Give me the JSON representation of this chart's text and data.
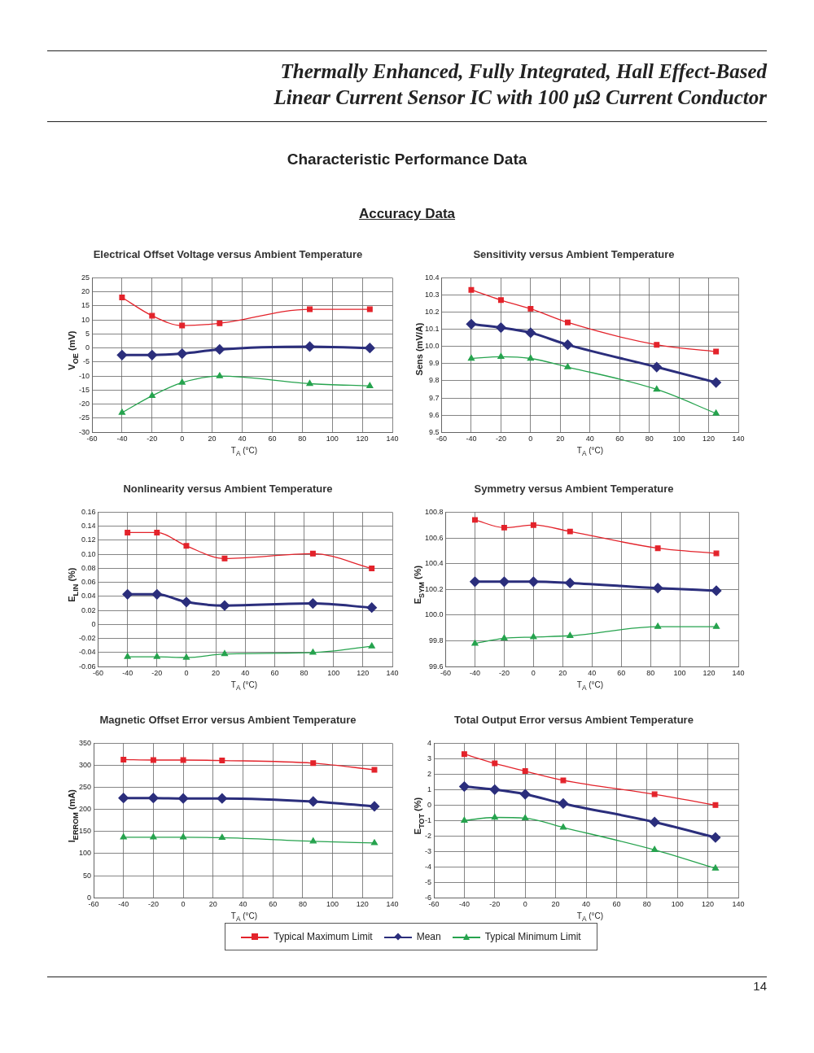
{
  "chart_data": [
    {
      "type": "line",
      "title": "Electrical Offset Voltage versus Ambient Temperature",
      "xlabel": "T$_{A}$ (°C)",
      "ylabel": "V$_{OE}$ (mV)",
      "x": [
        -40,
        -20,
        0,
        25,
        85,
        125
      ],
      "annotations": [
        "Thermally Enhanced, Fully Integrated, Hall Effect-Based Linear Current Sensor IC with 100 µΩ Current Conductor",
        "Characteristic Performance Data",
        "Accuracy Data",
        "14"
      ],
      "series": [
        {
          "color": "#e3232b",
          "marker": "square",
          "values": [
            18,
            11.5,
            8,
            8.8,
            13.8,
            13.8
          ]
        },
        {
          "color": "#2b2e7c",
          "marker": "diamond",
          "values": [
            -2.5,
            -2.5,
            -2,
            -0.5,
            0.5,
            0
          ]
        },
        {
          "color": "#26a34e",
          "marker": "triangle",
          "values": [
            -23,
            -17,
            -12.3,
            -10,
            -12.7,
            -13.5
          ]
        }
      ],
      "xlim": [
        -60,
        140
      ],
      "xticks": [
        -60,
        -40,
        -20,
        0,
        20,
        40,
        60,
        80,
        100,
        120,
        140
      ],
      "ylim": [
        -30,
        25
      ],
      "yticks": [
        -30,
        -25,
        -20,
        -15,
        -10,
        -5,
        0,
        5,
        10,
        15,
        20,
        25
      ],
      "grid": true
    },
    {
      "type": "line",
      "title": "Sensitivity versus Ambient Temperature",
      "xlabel": "T$_{A}$ (°C)",
      "ylabel": "Sens (mV/A)",
      "x": [
        -40,
        -20,
        0,
        25,
        85,
        125
      ],
      "series": [
        {
          "color": "#e3232b",
          "marker": "square",
          "values": [
            10.33,
            10.27,
            10.22,
            10.14,
            10.01,
            9.97
          ]
        },
        {
          "color": "#2b2e7c",
          "marker": "diamond",
          "values": [
            10.13,
            10.11,
            10.08,
            10.01,
            9.88,
            9.79
          ]
        },
        {
          "color": "#26a34e",
          "marker": "triangle",
          "values": [
            9.93,
            9.94,
            9.93,
            9.88,
            9.75,
            9.61
          ]
        }
      ],
      "xlim": [
        -60,
        140
      ],
      "xticks": [
        -60,
        -40,
        -20,
        0,
        20,
        40,
        60,
        80,
        100,
        120,
        140
      ],
      "ylim": [
        9.5,
        10.4
      ],
      "yticks": [
        9.5,
        9.6,
        9.7,
        9.8,
        9.9,
        {
          "value": 10,
          "label": "10.0"
        },
        10.1,
        10.2,
        10.3,
        10.4
      ],
      "grid": true
    },
    {
      "type": "line",
      "title": "Nonlinearity versus Ambient Temperature",
      "xlabel": "T$_{A}$ (°C)",
      "ylabel": "E$_{LIN}$ (%)",
      "x": [
        -40,
        -20,
        0,
        26,
        86,
        126
      ],
      "series": [
        {
          "color": "#e3232b",
          "marker": "square",
          "values": [
            0.131,
            0.131,
            0.112,
            0.094,
            0.101,
            0.08
          ]
        },
        {
          "color": "#2b2e7c",
          "marker": "diamond",
          "values": [
            0.043,
            0.043,
            0.032,
            0.027,
            0.03,
            0.024
          ]
        },
        {
          "color": "#26a34e",
          "marker": "triangle",
          "values": [
            -0.046,
            -0.046,
            -0.047,
            -0.042,
            -0.04,
            -0.031
          ]
        }
      ],
      "xlim": [
        -60,
        140
      ],
      "xticks": [
        -60,
        -40,
        -20,
        0,
        20,
        40,
        60,
        80,
        100,
        120,
        140
      ],
      "ylim": [
        -0.06,
        0.16
      ],
      "yticks": [
        -0.06,
        -0.04,
        -0.02,
        0,
        0.02,
        0.04,
        0.06,
        0.08,
        {
          "value": 0.1,
          "label": "0.10"
        },
        0.12,
        0.14,
        0.16
      ],
      "grid": true
    },
    {
      "type": "line",
      "title": "Symmetry versus Ambient Temperature",
      "xlabel": "T$_{A}$ (°C)",
      "ylabel": "E$_{SYM}$ (%)",
      "x": [
        -40,
        -20,
        0,
        25,
        85,
        125
      ],
      "series": [
        {
          "color": "#e3232b",
          "marker": "square",
          "values": [
            100.74,
            100.68,
            100.7,
            100.65,
            100.52,
            100.48
          ]
        },
        {
          "color": "#2b2e7c",
          "marker": "diamond",
          "values": [
            100.26,
            100.26,
            100.26,
            100.25,
            100.21,
            100.19
          ]
        },
        {
          "color": "#26a34e",
          "marker": "triangle",
          "values": [
            99.78,
            99.82,
            99.83,
            99.84,
            99.91,
            99.91
          ]
        }
      ],
      "xlim": [
        -60,
        140
      ],
      "xticks": [
        -60,
        -40,
        -20,
        0,
        20,
        40,
        60,
        80,
        100,
        120,
        140
      ],
      "ylim": [
        99.6,
        100.8
      ],
      "yticks": [
        99.6,
        99.8,
        {
          "value": 100,
          "label": "100.0"
        },
        100.2,
        100.4,
        100.6,
        100.8
      ],
      "grid": true
    },
    {
      "type": "line",
      "title": "Magnetic Offset Error versus Ambient Temperature",
      "xlabel": "T$_{A}$ (°C)",
      "ylabel": "I$_{ERROM}$ (mA)",
      "x": [
        -40,
        -20,
        0,
        26,
        87,
        128
      ],
      "series": [
        {
          "color": "#e3232b",
          "marker": "square",
          "values": [
            313,
            312,
            312,
            311,
            305,
            290
          ]
        },
        {
          "color": "#2b2e7c",
          "marker": "diamond",
          "values": [
            226,
            226,
            225,
            225,
            218,
            207
          ]
        },
        {
          "color": "#26a34e",
          "marker": "triangle",
          "values": [
            137,
            137,
            137,
            136,
            128,
            124
          ]
        }
      ],
      "xlim": [
        -60,
        140
      ],
      "xticks": [
        -60,
        -40,
        -20,
        0,
        20,
        40,
        60,
        80,
        100,
        120,
        140
      ],
      "ylim": [
        0,
        350
      ],
      "yticks": [
        0,
        50,
        100,
        150,
        200,
        250,
        300,
        350
      ],
      "grid": true
    },
    {
      "type": "line",
      "title": "Total Output Error versus Ambient Temperature",
      "xlabel": "T$_{A}$ (°C)",
      "ylabel": "E$_{TOT}$ (%)",
      "x": [
        -40,
        -20,
        0,
        25,
        85,
        125
      ],
      "series": [
        {
          "name": "Typical Maximum Limit",
          "color": "#e3232b",
          "marker": "square",
          "values": [
            3.3,
            2.7,
            2.2,
            1.6,
            0.7,
            0
          ]
        },
        {
          "name": "Mean",
          "color": "#2b2e7c",
          "marker": "diamond",
          "values": [
            1.2,
            1,
            0.7,
            0.1,
            -1.1,
            -2.1
          ]
        },
        {
          "name": "Typical Minimum Limit",
          "color": "#26a34e",
          "marker": "triangle",
          "values": [
            -1,
            -0.8,
            -0.85,
            -1.45,
            -2.9,
            -4.1
          ]
        }
      ],
      "xlim": [
        -60,
        140
      ],
      "xticks": [
        -60,
        -40,
        -20,
        0,
        20,
        40,
        60,
        80,
        100,
        120,
        140
      ],
      "ylim": [
        -6,
        4
      ],
      "yticks": [
        -6,
        -5,
        -4,
        -3,
        -2,
        -1,
        0,
        1,
        2,
        3,
        4
      ],
      "grid": true,
      "legend": "bottom"
    }
  ]
}
